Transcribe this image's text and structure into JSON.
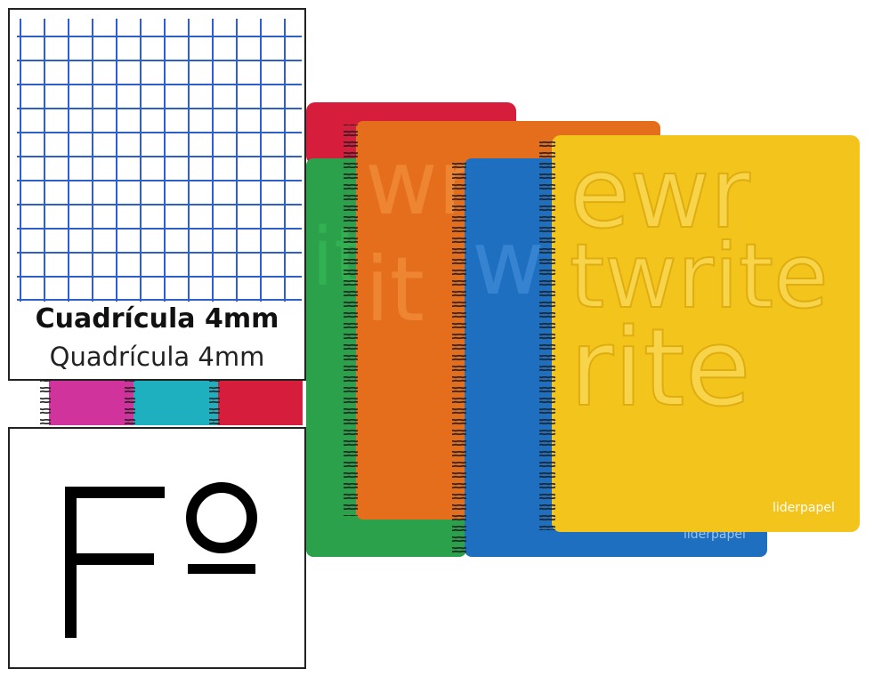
{
  "grid_panel": {
    "title": "Cuadrícula 4mm",
    "subtitle": "Quadrícula 4mm",
    "grid_color": "#2f5fc8"
  },
  "format_panel": {
    "symbol": "Fº"
  },
  "notebooks": {
    "colors": [
      "#d61d3c",
      "#e46e1c",
      "#2aa14a",
      "#1f6fc0",
      "#f2c41c",
      "#d0339b",
      "#1fb0c0"
    ],
    "brand_label": "liderpapel",
    "cover_word": "write"
  }
}
